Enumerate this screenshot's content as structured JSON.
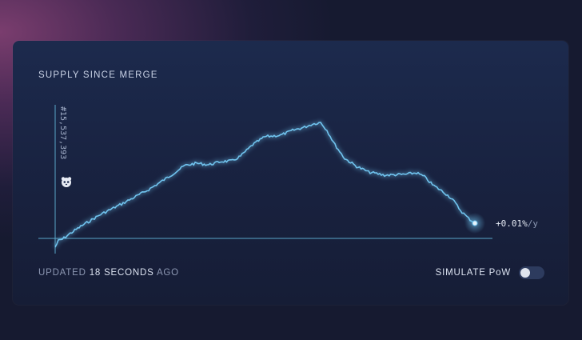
{
  "card": {
    "title": "SUPPLY SINCE MERGE",
    "block_label": "#15,537,393",
    "block_icon": "panda-icon",
    "rate_value": "+0.01%",
    "rate_unit": "/y",
    "updated_prefix": "UPDATED",
    "updated_strong": "18 SECONDS",
    "updated_suffix": "AGO",
    "simulate_label": "SIMULATE PoW",
    "simulate_pow_enabled": false
  },
  "colors": {
    "line": "#6fc3ee",
    "axis": "#5aa6c8",
    "card_bg": "#1c2a4d"
  }
}
